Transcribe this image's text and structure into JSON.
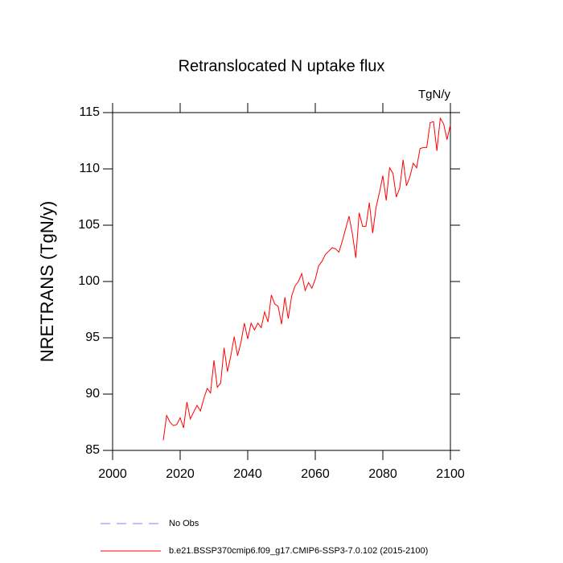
{
  "chart_data": {
    "type": "line",
    "title": "Retranslocated N uptake flux",
    "units_label": "TgN/y",
    "y_label": "NRETRANS  (TgN/y)",
    "x": [
      2015,
      2016,
      2017,
      2018,
      2019,
      2020,
      2021,
      2022,
      2023,
      2024,
      2025,
      2026,
      2027,
      2028,
      2029,
      2030,
      2031,
      2032,
      2033,
      2034,
      2035,
      2036,
      2037,
      2038,
      2039,
      2040,
      2041,
      2042,
      2043,
      2044,
      2045,
      2046,
      2047,
      2048,
      2049,
      2050,
      2051,
      2052,
      2053,
      2054,
      2055,
      2056,
      2057,
      2058,
      2059,
      2060,
      2061,
      2062,
      2063,
      2064,
      2065,
      2066,
      2067,
      2068,
      2069,
      2070,
      2071,
      2072,
      2073,
      2074,
      2075,
      2076,
      2077,
      2078,
      2079,
      2080,
      2081,
      2082,
      2083,
      2084,
      2085,
      2086,
      2087,
      2088,
      2089,
      2090,
      2091,
      2092,
      2093,
      2094,
      2095,
      2096,
      2097,
      2098,
      2099,
      2100
    ],
    "series": [
      {
        "name": "b.e21.BSSP370cmip6.f09_g17.CMIP6-SSP3-7.0.102 (2015-2100)",
        "color": "#ff0000",
        "values": [
          85.9,
          88.1,
          87.5,
          87.2,
          87.3,
          87.9,
          87.0,
          89.3,
          87.8,
          88.4,
          89.0,
          88.5,
          89.6,
          90.5,
          90.1,
          93.0,
          90.6,
          91.0,
          94.1,
          92.0,
          93.4,
          95.1,
          93.4,
          94.6,
          96.3,
          94.9,
          96.3,
          95.7,
          96.3,
          95.9,
          97.3,
          96.4,
          98.8,
          98.0,
          97.8,
          96.2,
          98.6,
          96.7,
          98.7,
          99.6,
          100.0,
          100.7,
          99.2,
          99.9,
          99.4,
          100.2,
          101.4,
          101.8,
          102.4,
          102.7,
          103.0,
          102.9,
          102.6,
          103.6,
          104.7,
          105.8,
          104.2,
          102.1,
          106.1,
          104.9,
          104.9,
          107.0,
          104.3,
          106.6,
          107.9,
          109.4,
          107.2,
          110.1,
          109.6,
          107.5,
          108.3,
          110.8,
          108.5,
          109.3,
          110.5,
          110.1,
          111.8,
          111.9,
          111.9,
          114.1,
          114.2,
          111.6,
          114.5,
          114.0,
          112.6,
          113.9
        ]
      }
    ],
    "reference": {
      "name": "No Obs",
      "color": "#8080ff",
      "dashed": true
    },
    "xlim": [
      2000,
      2100
    ],
    "xticks": [
      2000,
      2020,
      2040,
      2060,
      2080,
      2100
    ],
    "ylim": [
      85,
      115
    ],
    "yticks": [
      85,
      90,
      95,
      100,
      105,
      110,
      115
    ]
  }
}
